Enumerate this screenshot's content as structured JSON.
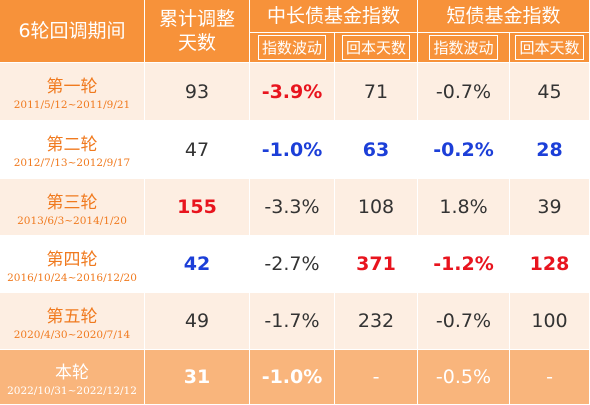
{
  "header": {
    "period": "6轮回调期间",
    "days": "累计调整天数",
    "groups": [
      "中长债基金指数",
      "短债基金指数"
    ],
    "subs": [
      "指数波动",
      "回本天数",
      "指数波动",
      "回本天数"
    ]
  },
  "table": {
    "rows": [
      {
        "name": "第一轮",
        "dates": "2011/5/12~2011/9/21",
        "cells": [
          "93",
          {
            "text": "-3.9%",
            "color": "#e8141e"
          },
          "71",
          "-0.7%",
          "45"
        ]
      },
      {
        "name": "第二轮",
        "dates": "2012/7/13~2012/9/17",
        "cells": [
          "47",
          {
            "text": "-1.0%",
            "color": "#1c3fd8"
          },
          {
            "text": "63",
            "color": "#1c3fd8"
          },
          {
            "text": "-0.2%",
            "color": "#1c3fd8"
          },
          {
            "text": "28",
            "color": "#1c3fd8"
          }
        ]
      },
      {
        "name": "第三轮",
        "dates": "2013/6/3~2014/1/20",
        "cells": [
          {
            "text": "155",
            "color": "#e8141e"
          },
          "-3.3%",
          "108",
          "1.8%",
          "39"
        ]
      },
      {
        "name": "第四轮",
        "dates": "2016/10/24~2016/12/20",
        "cells": [
          {
            "text": "42",
            "color": "#1c3fd8"
          },
          "-2.7%",
          {
            "text": "371",
            "color": "#e8141e"
          },
          {
            "text": "-1.2%",
            "color": "#e8141e"
          },
          {
            "text": "128",
            "color": "#e8141e"
          }
        ]
      },
      {
        "name": "第五轮",
        "dates": "2020/4/30~2020/7/14",
        "cells": [
          "49",
          "-1.7%",
          "232",
          "-0.7%",
          "100"
        ]
      },
      {
        "name": "本轮",
        "dates": "2022/10/31~2022/12/12",
        "cells": [
          {
            "text": "31",
            "color": "#ffffff"
          },
          {
            "text": "-1.0%",
            "color": "#ffffff"
          },
          "-",
          "-0.5%",
          "-"
        ]
      }
    ]
  }
}
